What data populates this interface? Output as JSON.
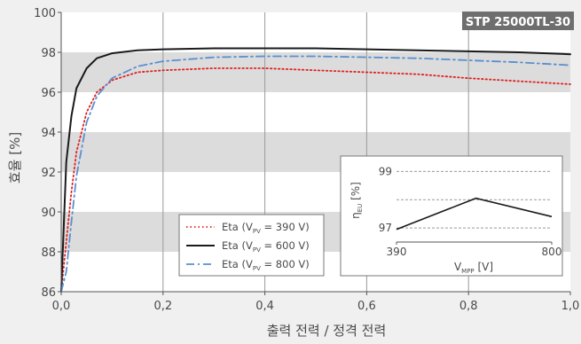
{
  "chart_data": {
    "type": "line",
    "badge": "STP 25000TL-30",
    "xlabel": "출력 전력 / 정격 전력",
    "ylabel": "효율 [%]",
    "xlim": [
      0,
      1.0
    ],
    "ylim": [
      86,
      100
    ],
    "xticks": [
      "0,0",
      "0,2",
      "0,4",
      "0,6",
      "0,8",
      "1,0"
    ],
    "yticks": [
      "86",
      "88",
      "90",
      "92",
      "94",
      "96",
      "98",
      "100"
    ],
    "grid": true,
    "legend_position": "bottom-left",
    "series": [
      {
        "name": "Eta (V",
        "sub": "PV",
        "suffix": " = 390 V)",
        "color": "#e02020",
        "dash": "dotted",
        "x": [
          0.0,
          0.01,
          0.02,
          0.03,
          0.05,
          0.07,
          0.1,
          0.15,
          0.2,
          0.3,
          0.4,
          0.5,
          0.6,
          0.7,
          0.8,
          0.9,
          1.0
        ],
        "y": [
          86.0,
          88.5,
          91.0,
          93.0,
          95.0,
          96.0,
          96.6,
          97.0,
          97.1,
          97.2,
          97.2,
          97.1,
          97.0,
          96.9,
          96.7,
          96.55,
          96.4
        ]
      },
      {
        "name": "Eta (V",
        "sub": "PV",
        "suffix": " = 600 V)",
        "color": "#1a1a1a",
        "dash": "solid",
        "x": [
          0.0,
          0.01,
          0.02,
          0.03,
          0.05,
          0.07,
          0.1,
          0.15,
          0.2,
          0.3,
          0.4,
          0.5,
          0.6,
          0.7,
          0.8,
          0.9,
          1.0
        ],
        "y": [
          86.0,
          92.5,
          94.8,
          96.2,
          97.2,
          97.7,
          97.95,
          98.1,
          98.15,
          98.2,
          98.2,
          98.2,
          98.15,
          98.1,
          98.05,
          98.0,
          97.9
        ]
      },
      {
        "name": "Eta (V",
        "sub": "PV",
        "suffix": " = 800 V)",
        "color": "#5b8fcf",
        "dash": "dashdot",
        "x": [
          0.0,
          0.01,
          0.02,
          0.03,
          0.05,
          0.07,
          0.1,
          0.15,
          0.2,
          0.3,
          0.4,
          0.5,
          0.6,
          0.7,
          0.8,
          0.9,
          1.0
        ],
        "y": [
          86.0,
          87.0,
          89.5,
          91.8,
          94.5,
          95.8,
          96.7,
          97.3,
          97.55,
          97.75,
          97.8,
          97.8,
          97.75,
          97.7,
          97.6,
          97.5,
          97.35
        ]
      }
    ],
    "inset": {
      "xlabel": "V",
      "xlabel_sub": "MPP",
      "xlabel_unit": " [V]",
      "ylabel": "η",
      "ylabel_sub": "EU",
      "ylabel_unit": " [%]",
      "xticks": [
        "390",
        "800"
      ],
      "yticks": [
        "99",
        "97"
      ],
      "xlim": [
        390,
        800
      ],
      "ylim": [
        96.5,
        99.2
      ],
      "x": [
        390,
        600,
        800
      ],
      "y": [
        96.95,
        98.05,
        97.4
      ]
    }
  }
}
